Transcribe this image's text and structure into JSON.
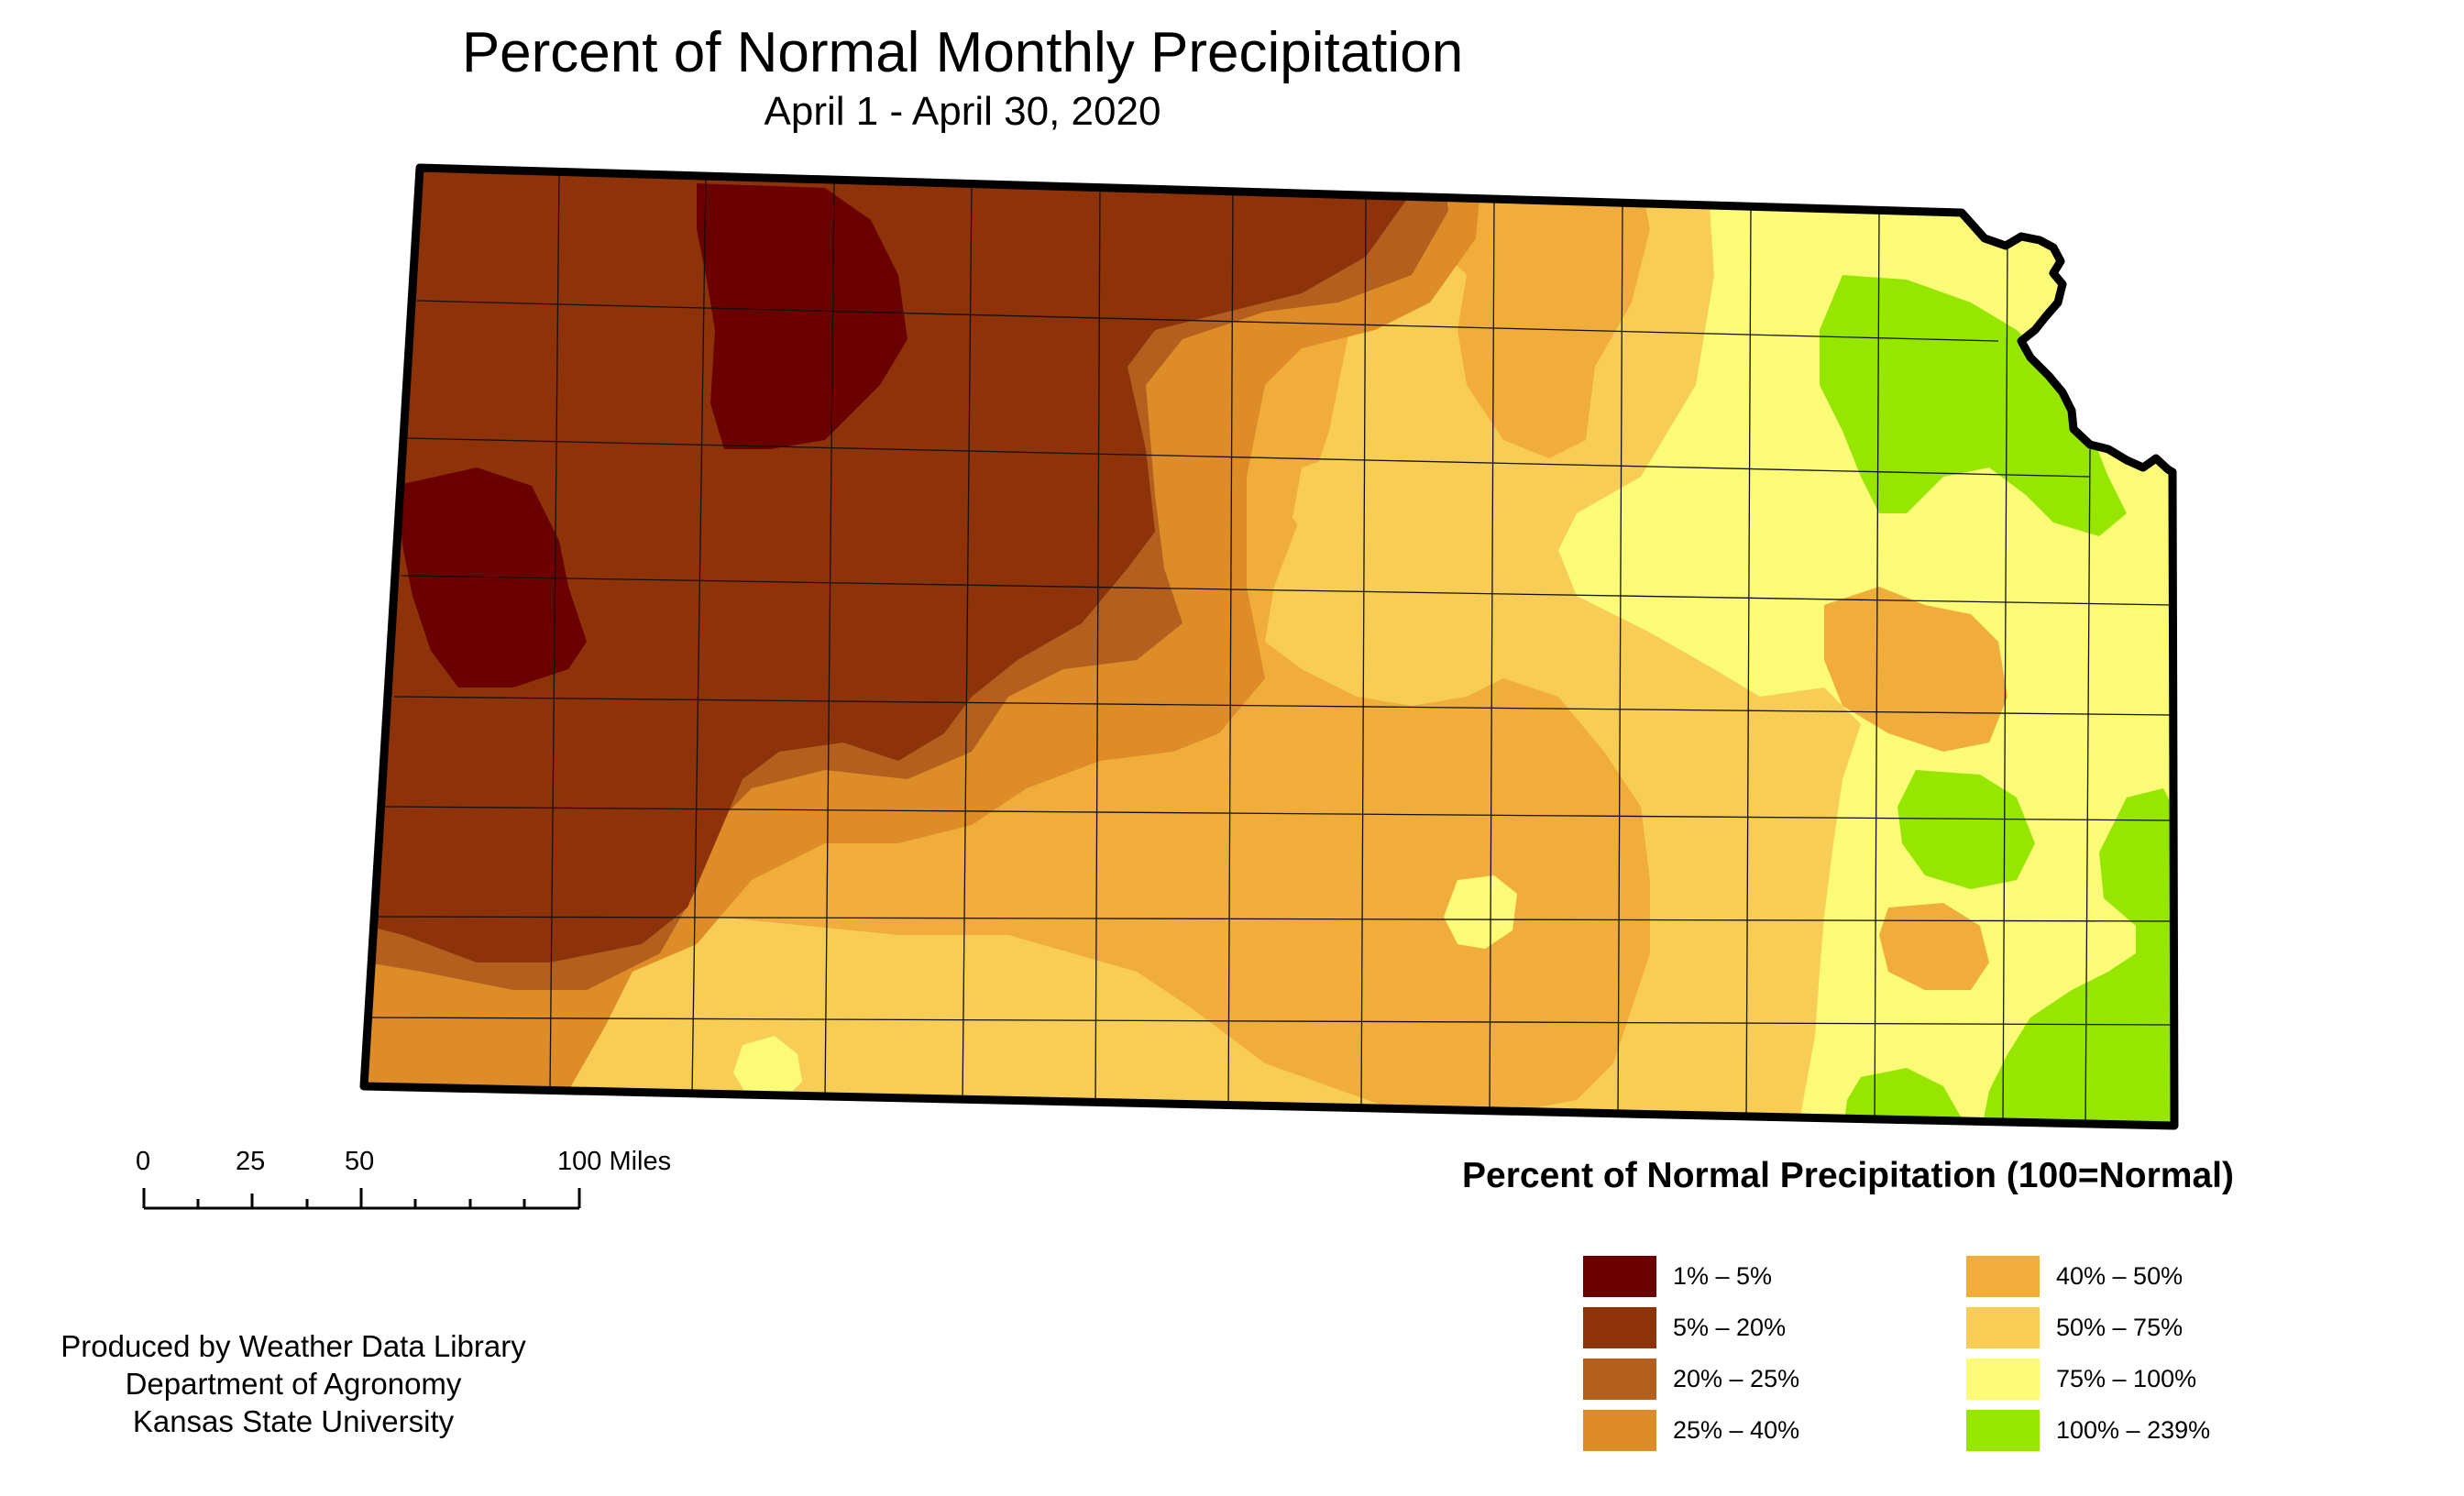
{
  "title": "Percent of Normal Monthly Precipitation",
  "subtitle": "April 1 - April 30, 2020",
  "legend": {
    "title": "Percent of Normal Precipitation (100=Normal)",
    "classes": [
      {
        "label": "1% – 5%",
        "color": "#6b0000"
      },
      {
        "label": "5% – 20%",
        "color": "#8e320a"
      },
      {
        "label": "20% – 25%",
        "color": "#b45f1e"
      },
      {
        "label": "25% – 40%",
        "color": "#de8c28"
      },
      {
        "label": "40% – 50%",
        "color": "#f0ad3c"
      },
      {
        "label": "50% – 75%",
        "color": "#f8cd55"
      },
      {
        "label": "75% – 100%",
        "color": "#fbfb78"
      },
      {
        "label": "100% – 239%",
        "color": "#96e600"
      }
    ]
  },
  "scale_bar": {
    "labels": [
      "0",
      "25",
      "50",
      "100 Miles"
    ]
  },
  "credits": {
    "line1": "Produced by Weather Data Library",
    "line2": "Department of Agronomy",
    "line3": "Kansas State University"
  },
  "map": {
    "state": "Kansas"
  }
}
